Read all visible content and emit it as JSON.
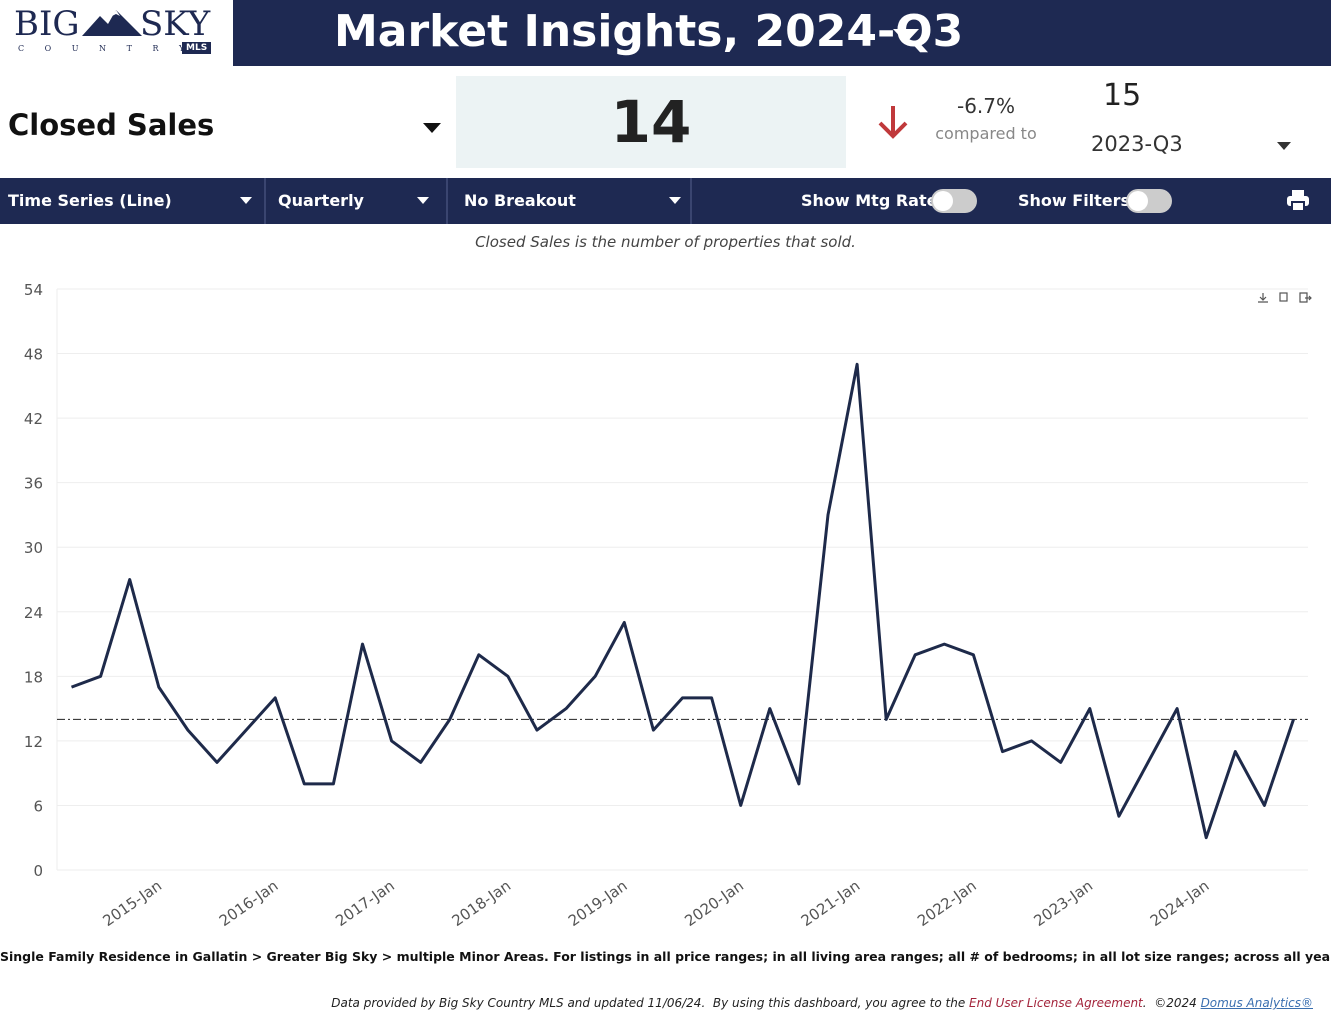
{
  "logo": {
    "left": "BIG",
    "right": "SKY",
    "sub": "C O U N T R Y",
    "badge": "MLS"
  },
  "header": {
    "title": "Market Insights, 2024-Q3"
  },
  "kpi": {
    "metric": "Closed Sales",
    "value": 14,
    "change": "-6.7%",
    "compared_label": "compared to",
    "prior_value": 15,
    "prior_period": "2023-Q3"
  },
  "toolbar": {
    "chart_type": "Time Series (Line)",
    "interval": "Quarterly",
    "breakout": "No Breakout",
    "mtg_rate_label": "Show Mtg Rate:",
    "filters_label": "Show Filters:"
  },
  "description": "Closed Sales is the number of properties that sold.",
  "chart_data": {
    "type": "line",
    "categories": [
      null,
      null,
      null,
      "2015-Jan",
      null,
      null,
      null,
      "2016-Jan",
      null,
      null,
      null,
      "2017-Jan",
      null,
      null,
      null,
      "2018-Jan",
      null,
      null,
      null,
      "2019-Jan",
      null,
      null,
      null,
      "2020-Jan",
      null,
      null,
      null,
      "2021-Jan",
      null,
      null,
      null,
      "2022-Jan",
      null,
      null,
      null,
      "2023-Jan",
      null,
      null,
      null,
      "2024-Jan",
      null,
      null,
      null
    ],
    "values": [
      17,
      18,
      27,
      17,
      13,
      10,
      13,
      16,
      8,
      8,
      21,
      12,
      10,
      14,
      20,
      18,
      13,
      15,
      18,
      23,
      13,
      16,
      16,
      6,
      15,
      8,
      33,
      47,
      14,
      20,
      21,
      20,
      11,
      12,
      10,
      15,
      5,
      10,
      15,
      3,
      11,
      6,
      14
    ],
    "color": "#1e2a4a",
    "reference_line": 14,
    "ylim": [
      0,
      54
    ],
    "yticks": [
      0,
      6,
      12,
      18,
      24,
      30,
      36,
      42,
      48,
      54
    ],
    "grid": true
  },
  "footnote": "Single Family Residence in Gallatin > Greater Big Sky > multiple Minor Areas. For listings in all price ranges; in all living area ranges; all # of bedrooms; in all lot size ranges; across all years built.",
  "credits": {
    "prefix": "Data provided by Big Sky Country MLS and updated 11/06/24.  By using this dashboard, you agree to the ",
    "link1": "End User License Agreement",
    "mid": ".  ©2024 ",
    "link2": "Domus Analytics®"
  }
}
